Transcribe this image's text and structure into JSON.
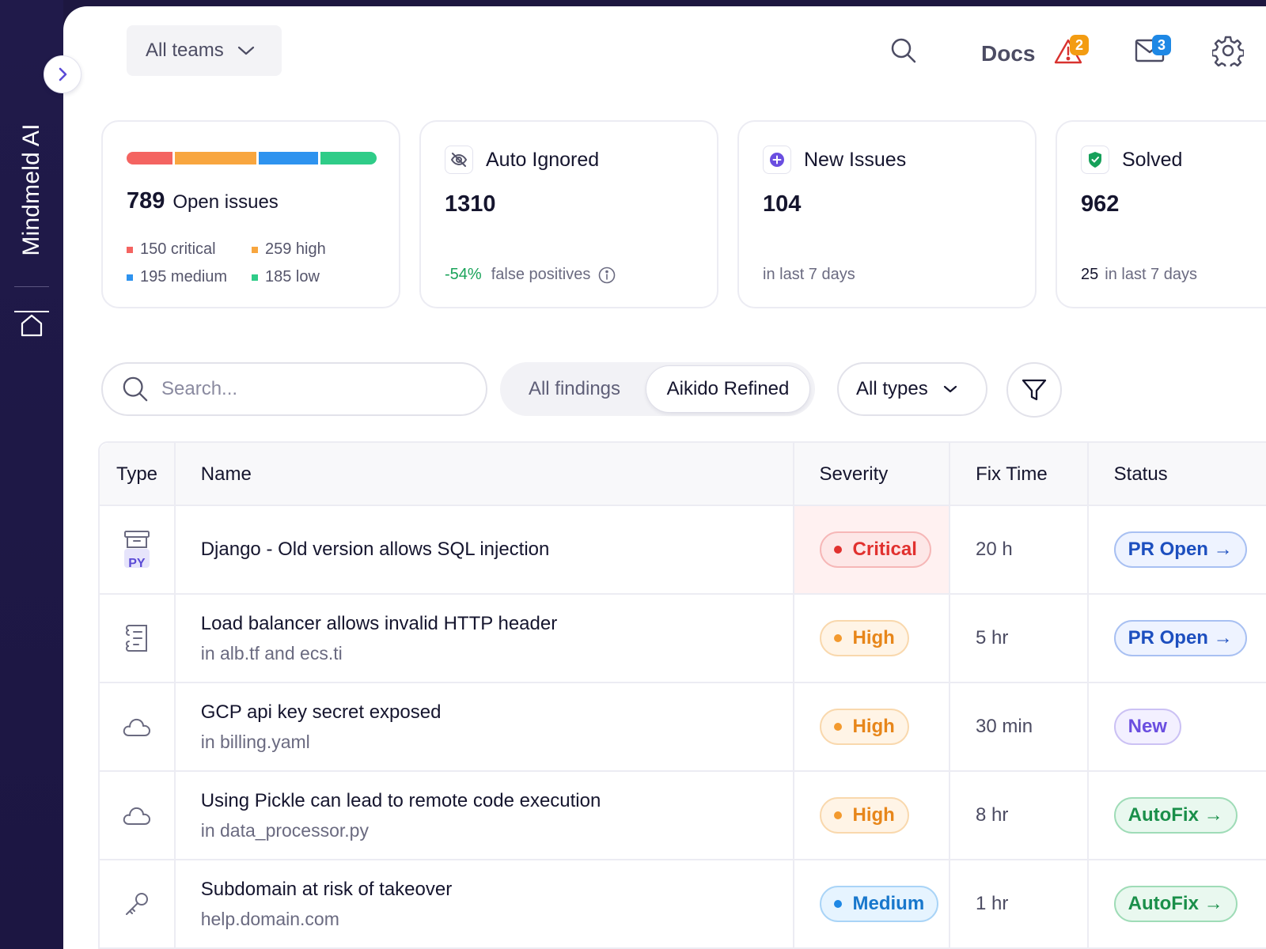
{
  "app": {
    "brand": "Mindmeld AI"
  },
  "topbar": {
    "team_select": "All teams",
    "docs_label": "Docs",
    "alerts_count": "2",
    "messages_count": "3"
  },
  "stats": {
    "open": {
      "count": "789",
      "label": "Open issues",
      "critical": "150 critical",
      "high": "259 high",
      "medium": "195 medium",
      "low": "185 low",
      "bar_colors": [
        "#f46461",
        "#f8a63f",
        "#2e93ef",
        "#2fcc88"
      ]
    },
    "auto_ignored": {
      "title": "Auto Ignored",
      "count": "1310",
      "delta": "-54%",
      "delta_label": "false positives"
    },
    "new_issues": {
      "title": "New Issues",
      "count": "104",
      "footer": "in last 7 days"
    },
    "solved": {
      "title": "Solved",
      "count": "962",
      "footer_count": "25",
      "footer_label": "in last 7 days"
    }
  },
  "controls": {
    "search_placeholder": "Search...",
    "segments": [
      "All findings",
      "Aikido Refined"
    ],
    "types_select": "All types"
  },
  "table": {
    "headers": [
      "Type",
      "Name",
      "Severity",
      "Fix Time",
      "Status"
    ],
    "rows": [
      {
        "type_icon": "python-package-icon",
        "type_badge": "PY",
        "name": "Django - Old version allows SQL injection",
        "location": "",
        "severity": "Critical",
        "fix_time": "20 h",
        "status": "PR Open →"
      },
      {
        "type_icon": "infrastructure-icon",
        "name": "Load balancer allows invalid HTTP header",
        "location": "in alb.tf and ecs.ti",
        "severity": "High",
        "fix_time": "5 hr",
        "status": "PR Open →"
      },
      {
        "type_icon": "cloud-icon",
        "name": "GCP api key secret exposed",
        "location": "in billing.yaml",
        "severity": "High",
        "fix_time": "30 min",
        "status": "New"
      },
      {
        "type_icon": "cloud-icon",
        "name": "Using Pickle can lead to remote code execution",
        "location": "in data_processor.py",
        "severity": "High",
        "fix_time": "8 hr",
        "status": "AutoFix →"
      },
      {
        "type_icon": "key-icon",
        "name": "Subdomain at risk of takeover",
        "location": "help.domain.com",
        "severity": "Medium",
        "fix_time": "1 hr",
        "status": "AutoFix →"
      }
    ]
  },
  "colors": {
    "critical": "#e1312f",
    "high": "#e7861a",
    "medium": "#1877cc",
    "low": "#2fcc88",
    "delta_positive": "#1aa35a",
    "alert_badge": "#f39c12",
    "mail_badge": "#1e88e5"
  }
}
